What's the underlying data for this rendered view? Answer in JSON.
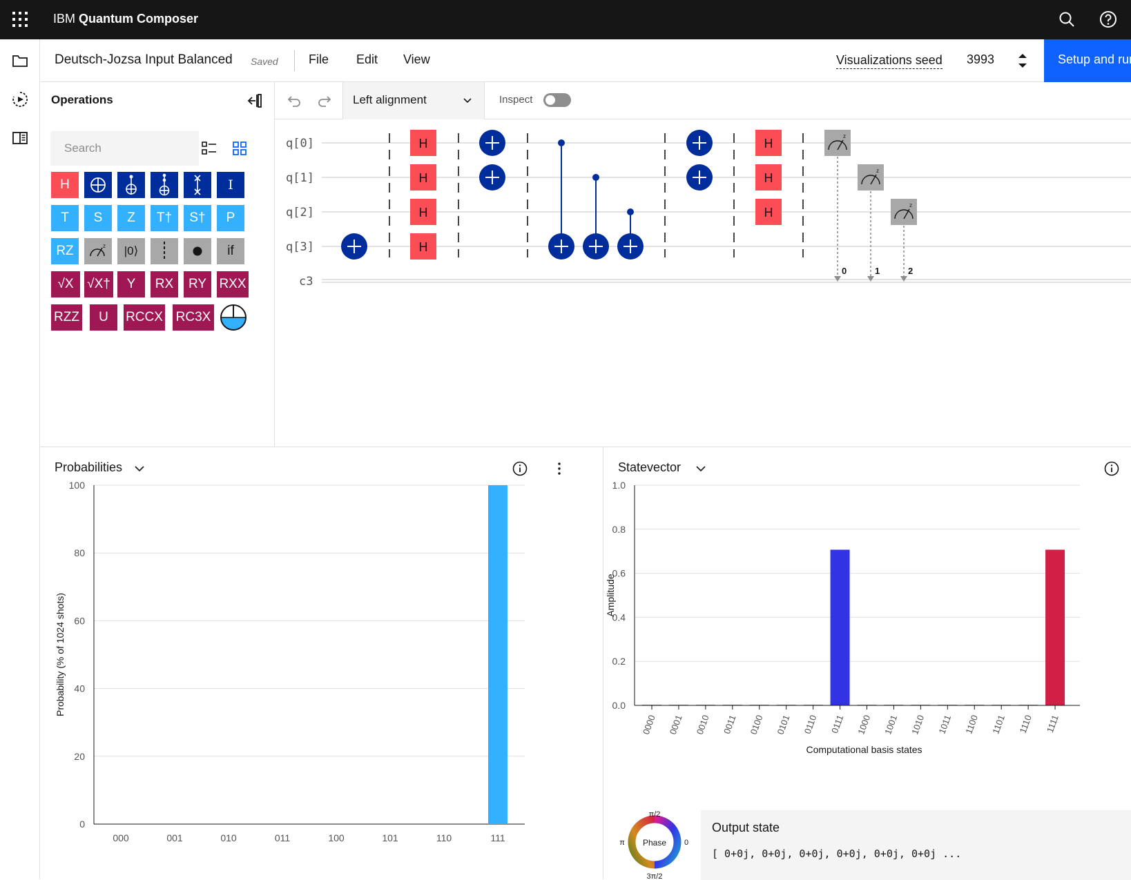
{
  "topbar": {
    "brand_prefix": "IBM",
    "brand_name": "Quantum Composer"
  },
  "filebar": {
    "title": "Deutsch-Jozsa Input Balanced",
    "saved": "Saved",
    "menus": [
      "File",
      "Edit",
      "View"
    ],
    "seed_label": "Visualizations seed",
    "seed_value": "3993",
    "setup_label": "Setup and run"
  },
  "operations": {
    "title": "Operations",
    "search_placeholder": "Search",
    "gates": [
      [
        "H",
        "⊕",
        "ccx",
        "cccx",
        "swap",
        "I"
      ],
      [
        "T",
        "S",
        "Z",
        "T†",
        "S†",
        "P"
      ],
      [
        "RZ",
        "measure",
        "|0⟩",
        "barrier",
        "●",
        "if"
      ],
      [
        "√X",
        "√X†",
        "Y",
        "RX",
        "RY",
        "RXX"
      ],
      [
        "RZZ",
        "U",
        "RCCX",
        "RC3X",
        "qsphere"
      ]
    ]
  },
  "circuit": {
    "alignment": "Left alignment",
    "inspect_label": "Inspect",
    "qubits": [
      "q[0]",
      "q[1]",
      "q[2]",
      "q[3]"
    ],
    "classical": "c3",
    "gate_label": "H",
    "measure_bits": [
      "0",
      "1",
      "2"
    ]
  },
  "probabilities": {
    "title": "Probabilities",
    "chart_data": {
      "type": "bar",
      "ylabel": "Probability (% of 1024 shots)",
      "categories": [
        "000",
        "001",
        "010",
        "011",
        "100",
        "101",
        "110",
        "111"
      ],
      "values": [
        0,
        0,
        0,
        0,
        0,
        0,
        0,
        100
      ],
      "ylim": [
        0,
        100
      ],
      "yticks": [
        0,
        20,
        40,
        60,
        80,
        100
      ],
      "color": "#33b1ff"
    }
  },
  "statevector": {
    "title": "Statevector",
    "chart_data": {
      "type": "bar",
      "xlabel": "Computational basis states",
      "ylabel": "Amplitude",
      "categories": [
        "0000",
        "0001",
        "0010",
        "0011",
        "0100",
        "0101",
        "0110",
        "0111",
        "1000",
        "1001",
        "1010",
        "1011",
        "1100",
        "1101",
        "1110",
        "1111"
      ],
      "values": [
        0,
        0,
        0,
        0,
        0,
        0,
        0,
        0.707,
        0,
        0,
        0,
        0,
        0,
        0,
        0,
        0.707
      ],
      "colors": [
        "#8d8d8d",
        "#8d8d8d",
        "#8d8d8d",
        "#8d8d8d",
        "#8d8d8d",
        "#8d8d8d",
        "#8d8d8d",
        "#3333e6",
        "#8d8d8d",
        "#8d8d8d",
        "#8d8d8d",
        "#8d8d8d",
        "#8d8d8d",
        "#8d8d8d",
        "#8d8d8d",
        "#d11f45"
      ],
      "ylim": [
        0,
        1.0
      ],
      "yticks": [
        "0.0",
        "0.2",
        "0.4",
        "0.6",
        "0.8",
        "1.0"
      ]
    },
    "phase": {
      "label": "Phase",
      "top": "π/2",
      "left": "π",
      "right": "0",
      "bottom": "3π/2"
    },
    "output_title": "Output state",
    "output_value": "[ 0+0j, 0+0j, 0+0j, 0+0j, 0+0j, 0+0j ..."
  }
}
